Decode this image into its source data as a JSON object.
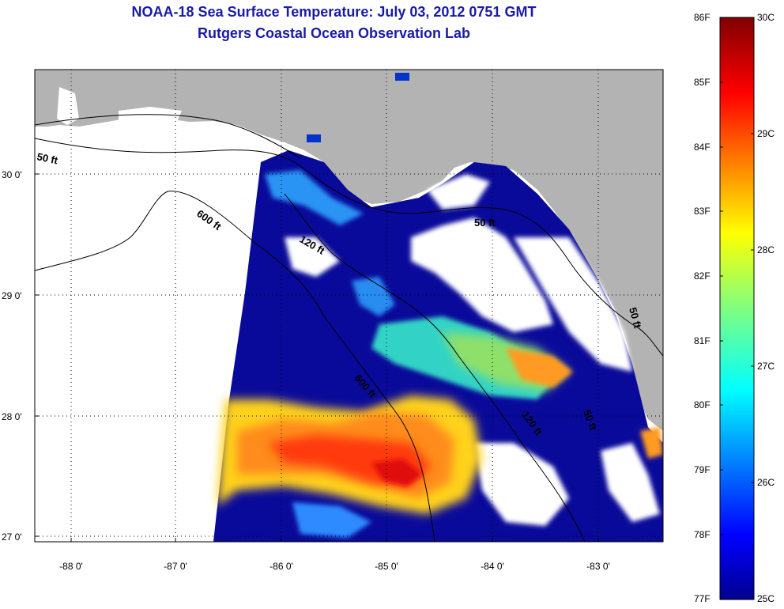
{
  "title": {
    "line1": "NOAA-18 Sea Surface Temperature:  July 03, 2012 0751 GMT",
    "line2": "Rutgers Coastal Ocean Observation Lab"
  },
  "map": {
    "lat_ticks": [
      "30 0'",
      "29 0'",
      "28 0'",
      "27 0'"
    ],
    "lon_ticks": [
      "-88 0'",
      "-87 0'",
      "-86 0'",
      "-85 0'",
      "-84 0'",
      "-83 0'"
    ],
    "contour_labels": [
      "50 ft",
      "600 ft",
      "120 ft",
      "50 ft",
      "600 ft",
      "120 ft",
      "50 ft",
      "50 ft"
    ],
    "colors": {
      "land": "#b3b3b3",
      "cloud": "#ffffff",
      "cold": "#00008f",
      "warm": "#ff3300"
    }
  },
  "colorbar": {
    "fahrenheit": [
      "86F",
      "85F",
      "84F",
      "83F",
      "82F",
      "81F",
      "80F",
      "79F",
      "78F",
      "77F"
    ],
    "celsius": [
      "30C",
      "29C",
      "28C",
      "27C",
      "26C",
      "25C"
    ]
  }
}
